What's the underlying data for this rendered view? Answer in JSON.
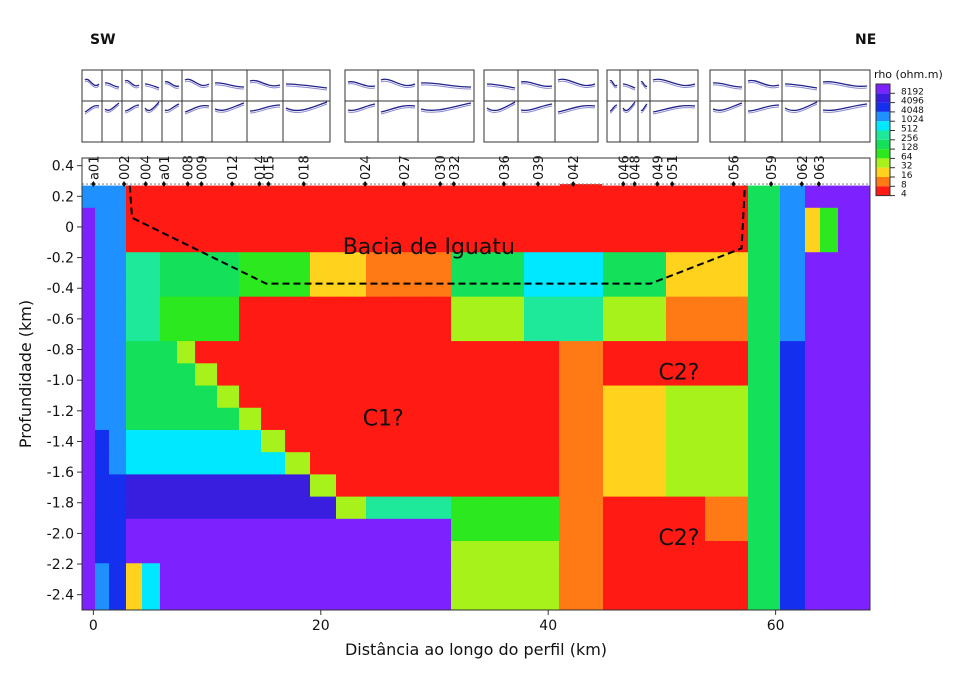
{
  "labels": {
    "left_direction": "SW",
    "right_direction": "NE"
  },
  "chart_data": {
    "type": "heatmap",
    "title": "",
    "xlabel": "Distância ao longo do perfil (km)",
    "ylabel": "Profundidade (km)",
    "xlim": [
      -1,
      68.3
    ],
    "ylim": [
      -2.5,
      0.45
    ],
    "x_ticks": [
      0,
      20,
      40,
      60
    ],
    "x_tick_labels": [
      "0",
      "20",
      "40",
      "60"
    ],
    "y_ticks": [
      0.4,
      0.2,
      0,
      -0.2,
      -0.4,
      -0.6,
      -0.8,
      -1.0,
      -1.2,
      -1.4,
      -1.6,
      -1.8,
      -2.0,
      -2.2,
      -2.4
    ],
    "y_tick_labels": [
      "0.4",
      "0.2",
      "0",
      "-0.2",
      "-0.4",
      "-0.6",
      "-0.8",
      "-1.0",
      "-1.2",
      "-1.4",
      "-1.6",
      "-1.8",
      "-2.0",
      "-2.2",
      "-2.4"
    ],
    "topography_elevation_km": 0.28,
    "grid": false,
    "stations": [
      {
        "name": "a01",
        "x": 0.0
      },
      {
        "name": "002",
        "x": 2.7
      },
      {
        "name": "004",
        "x": 4.6
      },
      {
        "name": "a01",
        "x": 6.2
      },
      {
        "name": "008",
        "x": 8.3
      },
      {
        "name": "009",
        "x": 9.5
      },
      {
        "name": "012",
        "x": 12.2
      },
      {
        "name": "014",
        "x": 14.6
      },
      {
        "name": "015",
        "x": 15.4
      },
      {
        "name": "018",
        "x": 18.5
      },
      {
        "name": "024",
        "x": 23.9
      },
      {
        "name": "027",
        "x": 27.3
      },
      {
        "name": "030",
        "x": 30.5
      },
      {
        "name": "032",
        "x": 31.7
      },
      {
        "name": "036",
        "x": 36.1
      },
      {
        "name": "039",
        "x": 39.1
      },
      {
        "name": "042",
        "x": 42.2
      },
      {
        "name": "046",
        "x": 46.6
      },
      {
        "name": "048",
        "x": 47.6
      },
      {
        "name": "049",
        "x": 49.6
      },
      {
        "name": "051",
        "x": 50.9
      },
      {
        "name": "056",
        "x": 56.3
      },
      {
        "name": "059",
        "x": 59.6
      },
      {
        "name": "062",
        "x": 62.3
      },
      {
        "name": "063",
        "x": 63.8
      }
    ],
    "legend": {
      "title": "rho (ohm.m)",
      "placement": "top-right",
      "classes": [
        {
          "label": "8192",
          "color": "#7d22ff"
        },
        {
          "label": "4096",
          "color": "#3a1ee0"
        },
        {
          "label": "4048",
          "color": "#1430ee"
        },
        {
          "label": "1024",
          "color": "#1e90ff"
        },
        {
          "label": "512",
          "color": "#00e8ff"
        },
        {
          "label": "256",
          "color": "#1ee89a"
        },
        {
          "label": "128",
          "color": "#14e05a"
        },
        {
          "label": "64",
          "color": "#2ce81e"
        },
        {
          "label": "32",
          "color": "#a6f21a"
        },
        {
          "label": "16",
          "color": "#ffd21e"
        },
        {
          "label": "8",
          "color": "#ff7a14"
        },
        {
          "label": "4",
          "color": "#ff1a14"
        }
      ]
    },
    "annotations": [
      {
        "text": "Bacia de Iguatu",
        "x": 29.5,
        "y": -0.13
      },
      {
        "text": "C1?",
        "x": 25.5,
        "y": -1.25
      },
      {
        "text": "C2?",
        "x": 51.5,
        "y": -0.95
      },
      {
        "text": "C2?",
        "x": 51.5,
        "y": -2.03
      }
    ],
    "basin_boundary": {
      "x": [
        3.2,
        3.4,
        15.2,
        49.0,
        57.0,
        57.3
      ],
      "y": [
        0.27,
        0.06,
        -0.37,
        -0.37,
        -0.14,
        0.27
      ]
    }
  }
}
